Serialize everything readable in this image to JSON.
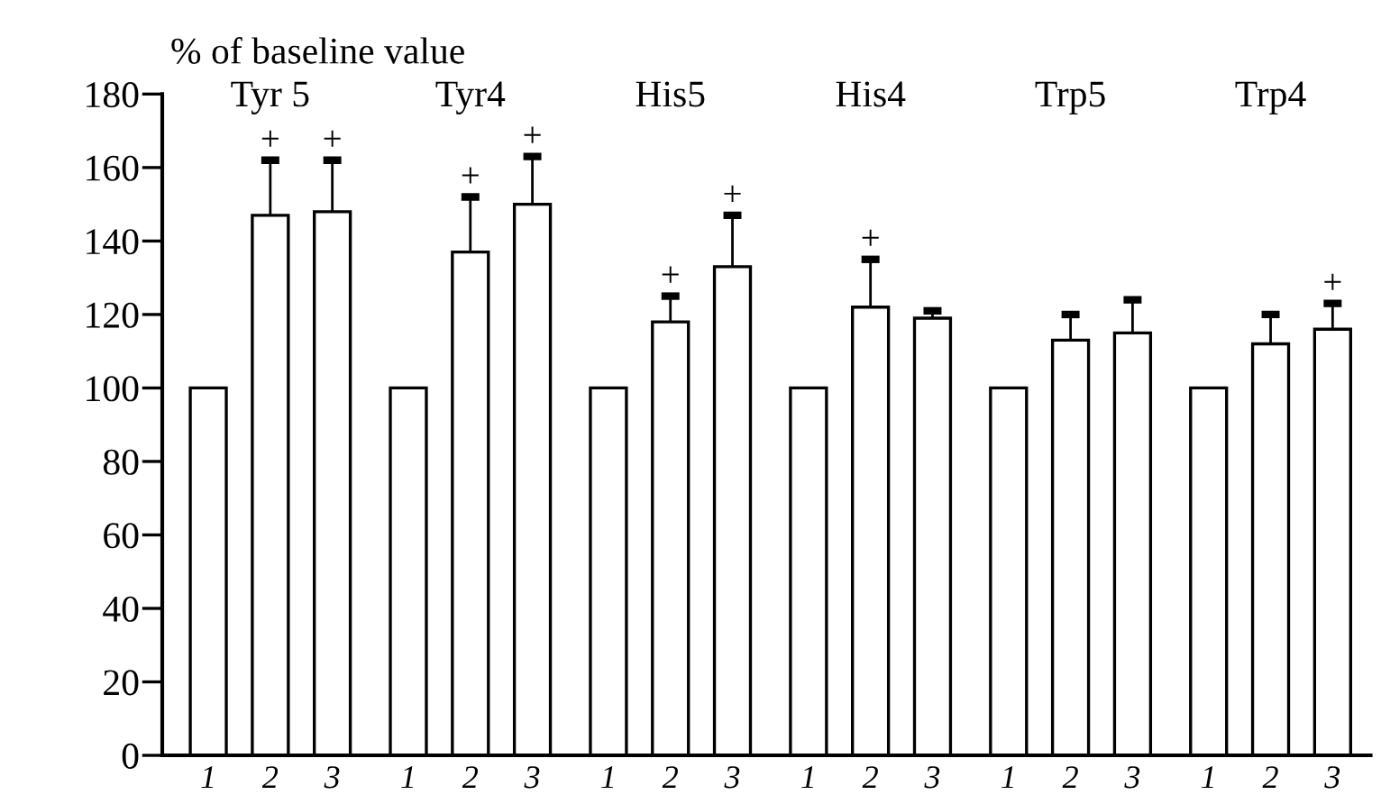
{
  "chart_data": {
    "type": "bar",
    "ylabel": "% of baseline value",
    "categories": [
      "Tyr 5",
      "Tyr4",
      "His5",
      "His4",
      "Trp5",
      "Trp4"
    ],
    "series": [
      {
        "name": "1",
        "color": "#ffffff",
        "values": [
          100,
          100,
          100,
          100,
          100,
          100
        ]
      },
      {
        "name": "2",
        "color": "#ffffff",
        "values": [
          147,
          137,
          118,
          122,
          113,
          112
        ],
        "errors": [
          [
            147,
            162
          ],
          [
            137,
            152
          ],
          [
            118,
            125
          ],
          [
            122,
            135
          ],
          [
            113,
            120
          ],
          [
            112,
            120
          ]
        ],
        "value_labels": [
          "+",
          "+",
          "+",
          "+",
          null,
          null
        ]
      },
      {
        "name": "3",
        "color": "#ffffff",
        "values": [
          148,
          150,
          133,
          119,
          115,
          116
        ],
        "errors": [
          [
            148,
            162
          ],
          [
            150,
            163
          ],
          [
            133,
            147
          ],
          [
            119,
            121
          ],
          [
            115,
            124
          ],
          [
            116,
            123
          ]
        ],
        "value_labels": [
          "+",
          "+",
          "+",
          null,
          null,
          "+"
        ]
      }
    ],
    "ylim": [
      0,
      180
    ],
    "yticks": [
      0,
      20,
      40,
      60,
      80,
      100,
      120,
      140,
      160,
      180
    ],
    "grid": false,
    "legend": false
  }
}
